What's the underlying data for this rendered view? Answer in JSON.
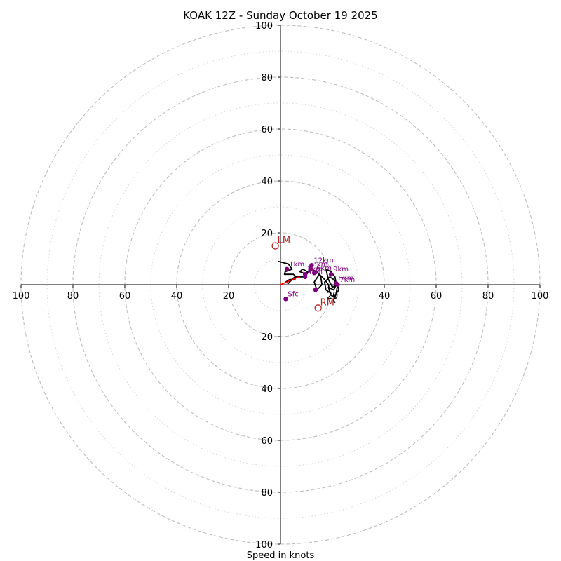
{
  "chart_data": {
    "type": "scatter",
    "title": "KOAK 12Z - Sunday October 19 2025",
    "xlabel": "Speed in knots",
    "ylabel": "",
    "xlim": [
      -100,
      100
    ],
    "ylim": [
      -100,
      100
    ],
    "major_rings": [
      20,
      40,
      60,
      80,
      100
    ],
    "minor_rings": [
      10,
      30,
      50,
      70,
      90
    ],
    "x_ticks": [
      {
        "value": -100,
        "label": "100"
      },
      {
        "value": -80,
        "label": "80"
      },
      {
        "value": -60,
        "label": "60"
      },
      {
        "value": -40,
        "label": "40"
      },
      {
        "value": -20,
        "label": "20"
      },
      {
        "value": 20,
        "label": "20"
      },
      {
        "value": 40,
        "label": "40"
      },
      {
        "value": 60,
        "label": "60"
      },
      {
        "value": 80,
        "label": "80"
      },
      {
        "value": 100,
        "label": "100"
      }
    ],
    "y_ticks": [
      {
        "value": 100,
        "label": "100"
      },
      {
        "value": 80,
        "label": "80"
      },
      {
        "value": 60,
        "label": "60"
      },
      {
        "value": 40,
        "label": "40"
      },
      {
        "value": 20,
        "label": "20"
      },
      {
        "value": -20,
        "label": "20"
      },
      {
        "value": -40,
        "label": "40"
      },
      {
        "value": -60,
        "label": "60"
      },
      {
        "value": -80,
        "label": "80"
      },
      {
        "value": -100,
        "label": "100"
      }
    ],
    "grid": true,
    "hodograph": {
      "color": "#000000",
      "x": [
        -0.8,
        3,
        4.5,
        1.8,
        1.5,
        5,
        6,
        5.5,
        3.5,
        2,
        3,
        5.5,
        9,
        10.5,
        8.5,
        7.5,
        10,
        12,
        14,
        15.5,
        16,
        14,
        13,
        15,
        17,
        18.5,
        19,
        17.5,
        17,
        19,
        20.5,
        21.5,
        20,
        18.5,
        17.5,
        19.5,
        21,
        21.5,
        20.5,
        18.5,
        19.5,
        21,
        21.5,
        22,
        22.5,
        21,
        20.5,
        21
      ],
      "y": [
        9,
        8,
        6,
        5,
        4,
        4,
        3,
        2,
        2,
        1,
        0.5,
        3,
        3,
        5,
        6,
        5,
        4,
        6,
        5,
        3,
        0,
        -2,
        1,
        4,
        2,
        0,
        -3,
        -2,
        1,
        3,
        2,
        0,
        -1,
        2,
        6,
        5,
        3,
        0,
        -2,
        -1,
        -4,
        -5,
        -3,
        0,
        -2,
        -4,
        -6,
        -7
      ]
    },
    "height_markers": {
      "color": "#800080",
      "points": [
        {
          "label": "Sfc",
          "x": 2,
          "y": -5.5
        },
        {
          "label": "1km",
          "x": 2.5,
          "y": 6
        },
        {
          "label": "2km",
          "x": 9.5,
          "y": 4
        },
        {
          "label": "3km",
          "x": 11.5,
          "y": 6
        },
        {
          "label": "4km",
          "x": 9.5,
          "y": 3
        },
        {
          "label": "",
          "x": 13.5,
          "y": -2
        },
        {
          "label": "6km",
          "x": 13,
          "y": 4.5
        },
        {
          "label": "7km",
          "x": 22,
          "y": 0
        },
        {
          "label": "8km",
          "x": 21.5,
          "y": 0.5
        },
        {
          "label": "9km",
          "x": 19.5,
          "y": 4
        },
        {
          "label": "12km",
          "x": 12,
          "y": 7.5
        }
      ]
    },
    "storm_motion": {
      "color": "#b22222",
      "points": [
        {
          "label": "LM",
          "x": -2,
          "y": 15
        },
        {
          "label": "RM",
          "x": 14.5,
          "y": -9
        }
      ]
    },
    "shear_vector": {
      "color": "#ff0000",
      "x": [
        0,
        7
      ],
      "y": [
        0,
        3
      ]
    }
  }
}
